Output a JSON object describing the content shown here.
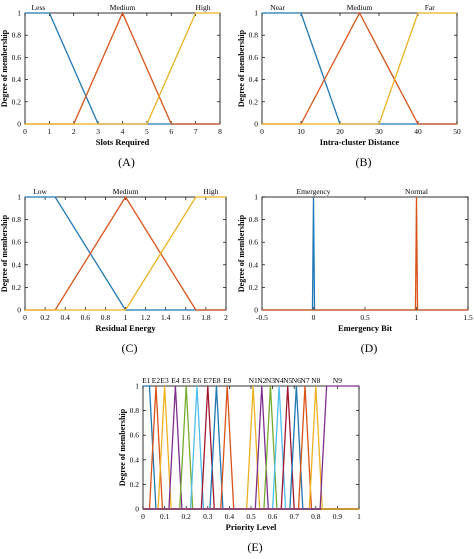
{
  "colors": [
    "#1f77b4",
    "#d95319",
    "#edb120",
    "#7e2f8e",
    "#77ac30",
    "#4dbeee",
    "#a2142f"
  ],
  "chart_data": [
    {
      "id": "A",
      "type": "line",
      "caption": "(A)",
      "xlabel": "Slots Required",
      "ylabel": "Degree of membership",
      "xlim": [
        0,
        8
      ],
      "ylim": [
        0,
        1
      ],
      "xticks": [
        "0",
        "1",
        "2",
        "3",
        "4",
        "5",
        "6",
        "7",
        "8"
      ],
      "yticks": [
        "0",
        "0.2",
        "0.4",
        "0.6",
        "0.8",
        "1"
      ],
      "series": [
        {
          "name": "Less",
          "points": [
            [
              0,
              1
            ],
            [
              1,
              1
            ],
            [
              3,
              0
            ],
            [
              8,
              0
            ]
          ],
          "color": "#1f77b4",
          "label_x": 0.55
        },
        {
          "name": "Medium",
          "points": [
            [
              0,
              0
            ],
            [
              2,
              0
            ],
            [
              4,
              1
            ],
            [
              6,
              0
            ],
            [
              8,
              0
            ]
          ],
          "color": "#d95319",
          "label_x": 4
        },
        {
          "name": "High",
          "points": [
            [
              0,
              0
            ],
            [
              5,
              0
            ],
            [
              7,
              1
            ],
            [
              8,
              1
            ]
          ],
          "color": "#edb120",
          "label_x": 7.3
        }
      ]
    },
    {
      "id": "B",
      "type": "line",
      "caption": "(B)",
      "xlabel": "Intra-cluster Distance",
      "ylabel": "Degree of membership",
      "xlim": [
        0,
        50
      ],
      "ylim": [
        0,
        1
      ],
      "xticks": [
        "0",
        "10",
        "20",
        "30",
        "40",
        "50"
      ],
      "yticks": [
        "0",
        "0.2",
        "0.4",
        "0.6",
        "0.8",
        "1"
      ],
      "series": [
        {
          "name": "Near",
          "points": [
            [
              0,
              1
            ],
            [
              10,
              1
            ],
            [
              20,
              0
            ],
            [
              50,
              0
            ]
          ],
          "color": "#1f77b4",
          "label_x": 4
        },
        {
          "name": "Medium",
          "points": [
            [
              0,
              0
            ],
            [
              10,
              0
            ],
            [
              25,
              1
            ],
            [
              40,
              0
            ],
            [
              50,
              0
            ]
          ],
          "color": "#d95319",
          "label_x": 25
        },
        {
          "name": "Far",
          "points": [
            [
              0,
              0
            ],
            [
              30,
              0
            ],
            [
              40,
              1
            ],
            [
              50,
              1
            ]
          ],
          "color": "#edb120",
          "label_x": 43
        }
      ]
    },
    {
      "id": "C",
      "type": "line",
      "caption": "(C)",
      "xlabel": "Residual Energy",
      "ylabel": "Degree of membership",
      "xlim": [
        0,
        2
      ],
      "ylim": [
        0,
        1
      ],
      "xticks": [
        "0",
        "0.2",
        "0.4",
        "0.6",
        "0.8",
        "1",
        "1.2",
        "1.4",
        "1.6",
        "1.8",
        "2"
      ],
      "yticks": [
        "0",
        "0.2",
        "0.4",
        "0.6",
        "0.8",
        "1"
      ],
      "series": [
        {
          "name": "Low",
          "points": [
            [
              0,
              1
            ],
            [
              0.3,
              1
            ],
            [
              1,
              0
            ],
            [
              2,
              0
            ]
          ],
          "color": "#1f77b4",
          "label_x": 0.15
        },
        {
          "name": "Medium",
          "points": [
            [
              0,
              0
            ],
            [
              0.3,
              0
            ],
            [
              1,
              1
            ],
            [
              1.7,
              0
            ],
            [
              2,
              0
            ]
          ],
          "color": "#d95319",
          "label_x": 1
        },
        {
          "name": "High",
          "points": [
            [
              0,
              0
            ],
            [
              1,
              0
            ],
            [
              1.7,
              1
            ],
            [
              2,
              1
            ]
          ],
          "color": "#edb120",
          "label_x": 1.85
        }
      ]
    },
    {
      "id": "D",
      "type": "line",
      "caption": "(D)",
      "xlabel": "Emergency Bit",
      "ylabel": "Degree of membership",
      "xlim": [
        -0.5,
        1.5
      ],
      "ylim": [
        0,
        1
      ],
      "xticks": [
        "-0.5",
        "0",
        "0.5",
        "1",
        "1.5"
      ],
      "xtick_values": [
        -0.5,
        0,
        0.5,
        1,
        1.5
      ],
      "yticks": [
        "0",
        "0.2",
        "0.4",
        "0.6",
        "0.8",
        "1"
      ],
      "series": [
        {
          "name": "Emergency",
          "points": [
            [
              -0.5,
              0
            ],
            [
              -0.01,
              0
            ],
            [
              0,
              1
            ],
            [
              0.01,
              0
            ],
            [
              1.5,
              0
            ]
          ],
          "color": "#1f77b4",
          "label_x": 0
        },
        {
          "name": "Normal",
          "points": [
            [
              -0.5,
              0
            ],
            [
              0.99,
              0
            ],
            [
              1,
              1
            ],
            [
              1.01,
              0
            ],
            [
              1.5,
              0
            ]
          ],
          "color": "#d95319",
          "label_x": 1
        }
      ]
    },
    {
      "id": "E",
      "type": "line",
      "caption": "(E)",
      "xlabel": "Priority Level",
      "ylabel": "Degree of membership",
      "xlim": [
        0,
        1
      ],
      "ylim": [
        0,
        1
      ],
      "xticks": [
        "0",
        "0.1",
        "0.2",
        "0.3",
        "0.4",
        "0.5",
        "0.6",
        "0.7",
        "0.8",
        "0.9",
        "1"
      ],
      "yticks": [
        "0",
        "0.2",
        "0.4",
        "0.6",
        "0.8",
        "1"
      ],
      "series": [
        {
          "name": "E1",
          "points": [
            [
              0,
              1
            ],
            [
              0.03,
              1
            ],
            [
              0.06,
              0
            ]
          ]
        },
        {
          "name": "E2",
          "points": [
            [
              0.03,
              0
            ],
            [
              0.06,
              1
            ],
            [
              0.09,
              0
            ]
          ]
        },
        {
          "name": "E3",
          "points": [
            [
              0.07,
              0
            ],
            [
              0.1,
              1
            ],
            [
              0.13,
              0
            ]
          ]
        },
        {
          "name": "E4",
          "points": [
            [
              0.12,
              0
            ],
            [
              0.15,
              1
            ],
            [
              0.18,
              0
            ]
          ]
        },
        {
          "name": "E5",
          "points": [
            [
              0.17,
              0
            ],
            [
              0.2,
              1
            ],
            [
              0.23,
              0
            ]
          ]
        },
        {
          "name": "E6",
          "points": [
            [
              0.22,
              0
            ],
            [
              0.25,
              1
            ],
            [
              0.28,
              0
            ]
          ]
        },
        {
          "name": "E7",
          "points": [
            [
              0.27,
              0
            ],
            [
              0.3,
              1
            ],
            [
              0.33,
              0
            ]
          ]
        },
        {
          "name": "E8",
          "points": [
            [
              0.31,
              0
            ],
            [
              0.34,
              1
            ],
            [
              0.37,
              0
            ]
          ]
        },
        {
          "name": "E9",
          "points": [
            [
              0.36,
              0
            ],
            [
              0.39,
              1
            ],
            [
              0.42,
              0
            ]
          ]
        },
        {
          "name": "N1",
          "points": [
            [
              0.48,
              0
            ],
            [
              0.51,
              1
            ],
            [
              0.54,
              0
            ]
          ]
        },
        {
          "name": "N2",
          "points": [
            [
              0.52,
              0
            ],
            [
              0.55,
              1
            ],
            [
              0.58,
              0
            ]
          ]
        },
        {
          "name": "N3",
          "points": [
            [
              0.56,
              0
            ],
            [
              0.59,
              1
            ],
            [
              0.62,
              0
            ]
          ]
        },
        {
          "name": "N4",
          "points": [
            [
              0.6,
              0
            ],
            [
              0.63,
              1
            ],
            [
              0.66,
              0
            ]
          ]
        },
        {
          "name": "N5",
          "points": [
            [
              0.64,
              0
            ],
            [
              0.67,
              1
            ],
            [
              0.7,
              0
            ]
          ]
        },
        {
          "name": "N6",
          "points": [
            [
              0.68,
              0
            ],
            [
              0.71,
              1
            ],
            [
              0.74,
              0
            ]
          ]
        },
        {
          "name": "N7",
          "points": [
            [
              0.72,
              0
            ],
            [
              0.75,
              1
            ],
            [
              0.78,
              0
            ]
          ]
        },
        {
          "name": "N8",
          "points": [
            [
              0.77,
              0
            ],
            [
              0.8,
              1
            ],
            [
              0.83,
              0
            ]
          ]
        },
        {
          "name": "N9",
          "points": [
            [
              0.82,
              0
            ],
            [
              0.85,
              1
            ],
            [
              1,
              1
            ]
          ]
        }
      ],
      "baseline_color": "#7e2f8e"
    }
  ]
}
